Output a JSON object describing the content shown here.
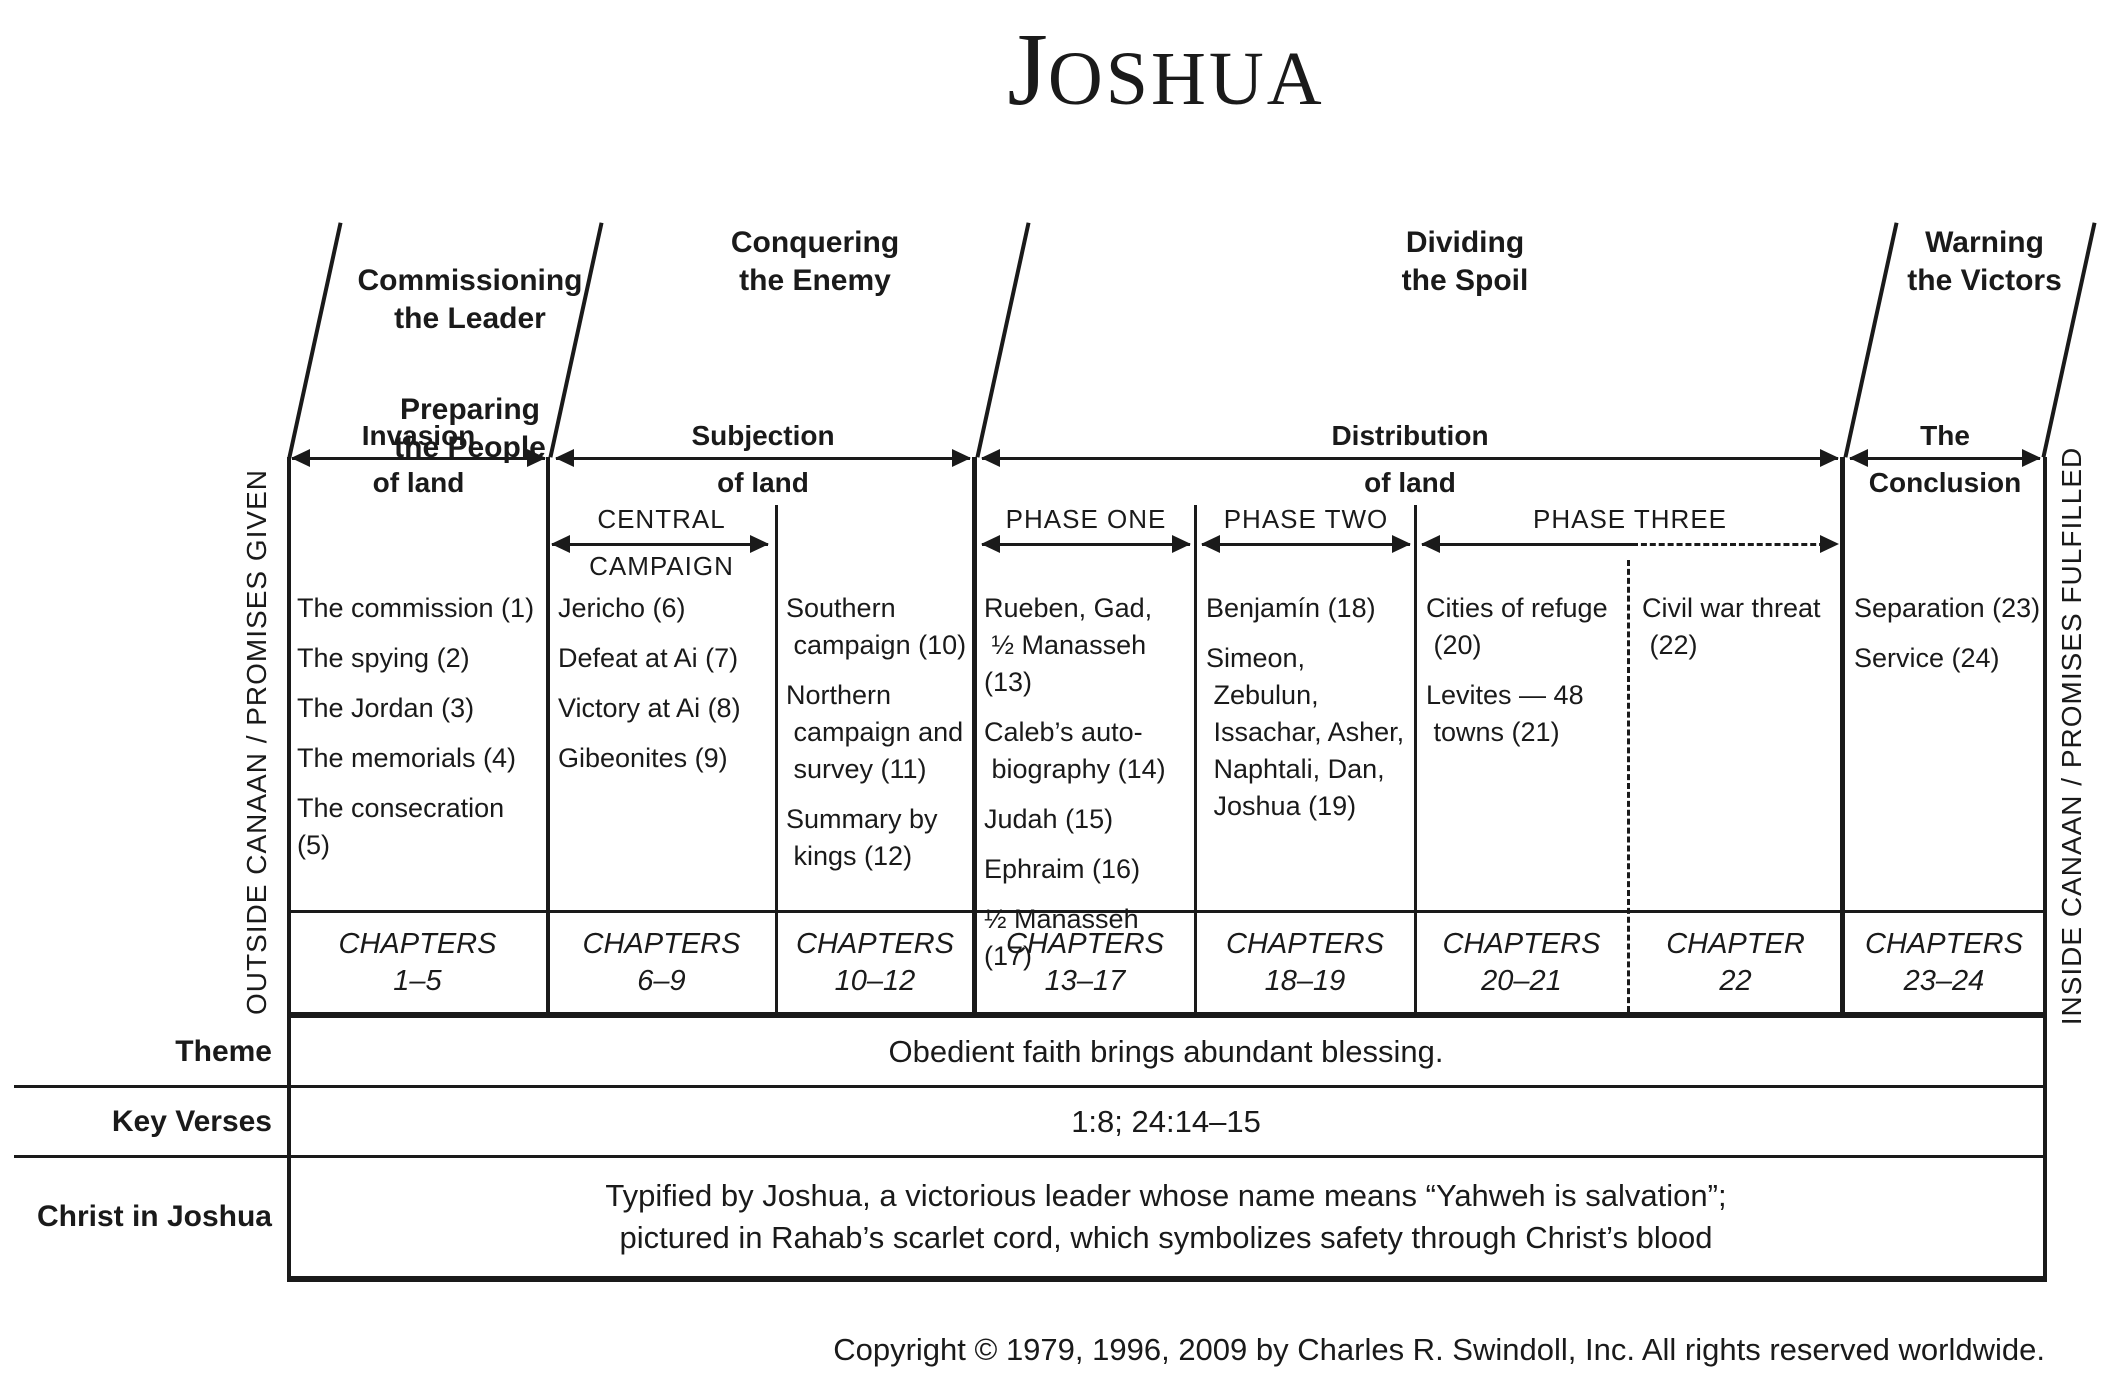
{
  "title": {
    "initial": "J",
    "rest": "OSHUA"
  },
  "sections": [
    {
      "title": "Commissioning\nthe Leader",
      "subtitle": "Preparing\nthe People",
      "span_top": "Invasion",
      "span_bottom": "of land"
    },
    {
      "title": "Conquering\nthe Enemy",
      "span_top": "Subjection",
      "span_bottom": "of land"
    },
    {
      "title": "Dividing\nthe Spoil",
      "span_top": "Distribution",
      "span_bottom": "of land"
    },
    {
      "title": "Warning\nthe Victors",
      "span_top": "The",
      "span_bottom": "Conclusion"
    }
  ],
  "subspans": {
    "central_top": "CENTRAL",
    "central_bottom": "CAMPAIGN",
    "phase_one": "PHASE ONE",
    "phase_two": "PHASE TWO",
    "phase_three": "PHASE THREE"
  },
  "columns": [
    {
      "items": [
        "The commission (1)",
        "The spying (2)",
        "The Jordan (3)",
        "The memorials (4)",
        "The consecration (5)"
      ],
      "chapters_word": "CHAPTERS",
      "chapters_range": "1–5"
    },
    {
      "items": [
        "Jericho (6)",
        "Defeat at Ai (7)",
        "Victory at Ai (8)",
        "Gibeonites (9)"
      ],
      "chapters_word": "CHAPTERS",
      "chapters_range": "6–9"
    },
    {
      "items": [
        "Southern\n campaign (10)",
        "Northern\n campaign and\n survey (11)",
        "Summary by\n kings (12)"
      ],
      "chapters_word": "CHAPTERS",
      "chapters_range": "10–12"
    },
    {
      "items": [
        "Rueben, Gad,\n ½ Manasseh (13)",
        "Caleb’s auto-\n biography (14)",
        "Judah (15)",
        "Ephraim (16)",
        "½ Manasseh (17)"
      ],
      "chapters_word": "CHAPTERS",
      "chapters_range": "13–17"
    },
    {
      "items": [
        "Benjamín (18)",
        "Simeon,\n Zebulun,\n Issachar, Asher,\n Naphtali, Dan,\n Joshua (19)"
      ],
      "chapters_word": "CHAPTERS",
      "chapters_range": "18–19"
    },
    {
      "items": [
        "Cities of refuge\n (20)",
        "Levites — 48\n towns (21)"
      ],
      "chapters_word": "CHAPTERS",
      "chapters_range": "20–21"
    },
    {
      "items": [
        "Civil war threat\n (22)"
      ],
      "chapters_word": "CHAPTER",
      "chapters_range": "22"
    },
    {
      "items": [
        "Separation (23)",
        "Service (24)"
      ],
      "chapters_word": "CHAPTERS",
      "chapters_range": "23–24"
    }
  ],
  "side_labels": {
    "left": "OUTSIDE CANAAN / PROMISES GIVEN",
    "right": "INSIDE CANAAN / PROMISES FULFILLED"
  },
  "bottom_rows": [
    {
      "label": "Theme",
      "value": "Obedient faith brings abundant blessing."
    },
    {
      "label": "Key Verses",
      "value": "1:8; 24:14–15"
    },
    {
      "label": "Christ in Joshua",
      "value": "Typified by Joshua, a victorious leader whose name means “Yahweh is salvation”;\npictured in Rahab’s scarlet cord, which symbolizes safety through Christ’s blood"
    }
  ],
  "copyright": "Copyright © 1979, 1996, 2009 by Charles R. Swindoll, Inc. All rights reserved worldwide."
}
